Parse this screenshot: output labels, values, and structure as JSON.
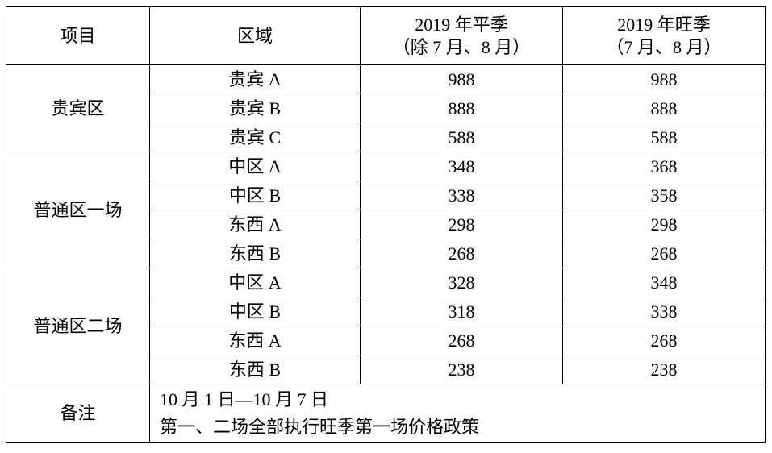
{
  "header": {
    "col1": "项目",
    "col2": "区域",
    "col3_line1": "2019 年平季",
    "col3_line2": "（除 7 月、8 月）",
    "col4_line1": "2019 年旺季",
    "col4_line2": "（7 月、8 月）"
  },
  "groups": [
    {
      "name": "贵宾区",
      "rows": [
        {
          "area": "贵宾 A",
          "off": "988",
          "peak": "988"
        },
        {
          "area": "贵宾 B",
          "off": "888",
          "peak": "888"
        },
        {
          "area": "贵宾 C",
          "off": "588",
          "peak": "588"
        }
      ]
    },
    {
      "name": "普通区一场",
      "rows": [
        {
          "area": "中区 A",
          "off": "348",
          "peak": "368"
        },
        {
          "area": "中区 B",
          "off": "338",
          "peak": "358"
        },
        {
          "area": "东西 A",
          "off": "298",
          "peak": "298"
        },
        {
          "area": "东西 B",
          "off": "268",
          "peak": "268"
        }
      ]
    },
    {
      "name": "普通区二场",
      "rows": [
        {
          "area": "中区 A",
          "off": "328",
          "peak": "348"
        },
        {
          "area": "中区 B",
          "off": "318",
          "peak": "338"
        },
        {
          "area": "东西 A",
          "off": "268",
          "peak": "268"
        },
        {
          "area": "东西 B",
          "off": "238",
          "peak": "238"
        }
      ]
    }
  ],
  "note": {
    "label": "备注",
    "line1": "10 月 1 日—10 月 7 日",
    "line2": "第一、二场全部执行旺季第一场价格政策"
  }
}
